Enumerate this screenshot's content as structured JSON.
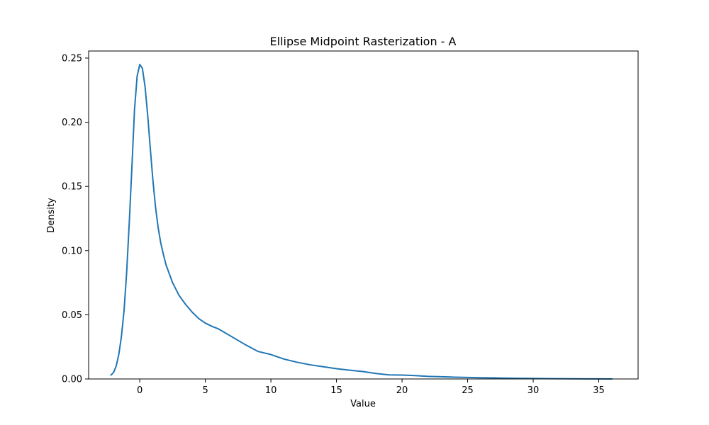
{
  "chart_data": {
    "type": "line",
    "title": "Ellipse Midpoint Rasterization - A",
    "xlabel": "Value",
    "ylabel": "Density",
    "xlim": [
      -3.9,
      38.0
    ],
    "ylim": [
      0,
      0.2555
    ],
    "xticks": [
      0,
      5,
      10,
      15,
      20,
      25,
      30,
      35
    ],
    "yticks": [
      0.0,
      0.05,
      0.1,
      0.15,
      0.2,
      0.25
    ],
    "ytick_labels": [
      "0.00",
      "0.05",
      "0.10",
      "0.15",
      "0.20",
      "0.25"
    ],
    "grid": false,
    "legend": "none",
    "series": [
      {
        "color": "#1f77b4",
        "x": [
          -2.2,
          -2.0,
          -1.8,
          -1.6,
          -1.4,
          -1.2,
          -1.0,
          -0.8,
          -0.6,
          -0.4,
          -0.2,
          0.0,
          0.2,
          0.4,
          0.6,
          0.8,
          1.0,
          1.2,
          1.4,
          1.6,
          1.8,
          2.0,
          2.5,
          3.0,
          3.5,
          4.0,
          4.5,
          5.0,
          5.5,
          6.0,
          6.5,
          7.0,
          8.0,
          9.0,
          10.0,
          11.0,
          12.0,
          13.0,
          14.0,
          15.0,
          16.0,
          17.0,
          18.0,
          19.0,
          20.0,
          21.0,
          22.0,
          23.0,
          24.0,
          25.0,
          26.0,
          27.0,
          28.0,
          29.0,
          30.0,
          31.0,
          32.0,
          33.0,
          34.0,
          35.0,
          36.0
        ],
        "y": [
          0.003,
          0.005,
          0.01,
          0.019,
          0.033,
          0.053,
          0.083,
          0.122,
          0.165,
          0.21,
          0.236,
          0.245,
          0.242,
          0.228,
          0.206,
          0.18,
          0.155,
          0.134,
          0.118,
          0.106,
          0.097,
          0.089,
          0.075,
          0.065,
          0.058,
          0.052,
          0.047,
          0.0435,
          0.041,
          0.039,
          0.036,
          0.033,
          0.027,
          0.0215,
          0.019,
          0.0155,
          0.013,
          0.011,
          0.0095,
          0.008,
          0.0068,
          0.0058,
          0.0043,
          0.0032,
          0.003,
          0.0026,
          0.002,
          0.0017,
          0.0014,
          0.0012,
          0.001,
          0.0008,
          0.0006,
          0.0005,
          0.0004,
          0.0003,
          0.0002,
          0.00015,
          0.0001,
          5e-05,
          2e-05
        ]
      }
    ]
  }
}
